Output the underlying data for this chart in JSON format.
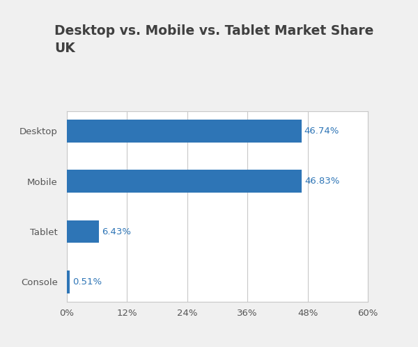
{
  "title": "Desktop vs. Mobile vs. Tablet Market Share\nUK",
  "categories": [
    "Console",
    "Tablet",
    "Mobile",
    "Desktop"
  ],
  "values": [
    0.51,
    6.43,
    46.83,
    46.74
  ],
  "labels": [
    "0.51%",
    "6.43%",
    "46.83%",
    "46.74%"
  ],
  "bar_color": "#2E75B6",
  "label_color": "#2E75B6",
  "background_color": "#F0F0F0",
  "plot_background_color": "#FFFFFF",
  "title_color": "#404040",
  "tick_label_color": "#555555",
  "ytick_color": "#555555",
  "grid_color": "#C8C8C8",
  "spine_color": "#C8C8C8",
  "xlim": [
    0,
    60
  ],
  "xticks": [
    0,
    12,
    24,
    36,
    48,
    60
  ],
  "xtick_labels": [
    "0%",
    "12%",
    "24%",
    "36%",
    "48%",
    "60%"
  ],
  "title_fontsize": 13.5,
  "label_fontsize": 9.5,
  "tick_fontsize": 9.5,
  "bar_height": 0.45
}
